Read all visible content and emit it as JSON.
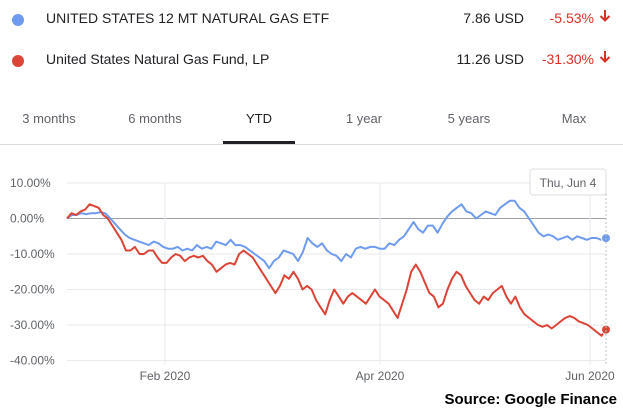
{
  "legend": [
    {
      "name": "UNITED STATES 12 MT NATURAL GAS ETF",
      "price": "7.86 USD",
      "change": "-5.53%",
      "color": "#6f9bef",
      "direction": "down"
    },
    {
      "name": "United States Natural Gas Fund, LP",
      "price": "11.26 USD",
      "change": "-31.30%",
      "color": "#db4437",
      "direction": "down"
    }
  ],
  "tabs": [
    "3 months",
    "6 months",
    "YTD",
    "1 year",
    "5 years",
    "Max"
  ],
  "active_tab": "YTD",
  "tooltip": "Thu, Jun 4",
  "source": "Source: Google Finance",
  "chart_data": {
    "type": "line",
    "y_ticks": [
      "10.00%",
      "0.00%",
      "-10.00%",
      "-20.00%",
      "-30.00%",
      "-40.00%"
    ],
    "ylim": [
      -40,
      10
    ],
    "x_ticks": [
      "Feb 2020",
      "Apr 2020",
      "Jun 2020"
    ],
    "grid": true,
    "series": [
      {
        "name": "UNITED STATES 12 MT NATURAL GAS ETF",
        "color": "#6f9bef",
        "values": [
          0,
          1,
          1,
          1.5,
          1.2,
          1.5,
          1.5,
          1.8,
          1.4,
          0,
          -1.5,
          -3,
          -4.5,
          -5.5,
          -6,
          -6.5,
          -7,
          -7.5,
          -6.5,
          -7,
          -8,
          -8.5,
          -8.5,
          -8,
          -9,
          -8.5,
          -9,
          -7.5,
          -8.5,
          -8,
          -8.5,
          -6.5,
          -7,
          -7.5,
          -6,
          -7.5,
          -7.5,
          -8,
          -9,
          -10,
          -11,
          -12,
          -14,
          -12,
          -11,
          -9,
          -9.5,
          -10,
          -12,
          -9.5,
          -5.5,
          -7,
          -8,
          -7,
          -9,
          -10,
          -10.5,
          -12,
          -10,
          -11,
          -8.5,
          -8,
          -8.5,
          -8,
          -8,
          -8.5,
          -8.5,
          -7,
          -7.5,
          -6,
          -5,
          -3,
          -1,
          -3,
          -4,
          -2,
          -2,
          -4,
          -1.5,
          0.5,
          2,
          3,
          4,
          2,
          1.5,
          0,
          1,
          2,
          1.5,
          1,
          3,
          4,
          5,
          5,
          3,
          2,
          0,
          -2,
          -4,
          -5,
          -4.5,
          -5,
          -6,
          -5.5,
          -5,
          -6,
          -5,
          -5.5,
          -6,
          -5.5,
          -5.5,
          -6,
          -5.53
        ],
        "last_value": "-5.53%"
      },
      {
        "name": "United States Natural Gas Fund, LP",
        "color": "#db4437",
        "values": [
          0,
          1.5,
          1,
          2,
          2.5,
          4,
          3.5,
          3,
          1,
          0,
          -2,
          -4,
          -6,
          -9,
          -9,
          -8,
          -10,
          -10,
          -9,
          -9,
          -11,
          -12.5,
          -12.5,
          -11,
          -10,
          -10.5,
          -12,
          -11,
          -10.5,
          -11,
          -10.5,
          -12,
          -13,
          -15,
          -14,
          -13,
          -12.5,
          -13,
          -10,
          -9,
          -10,
          -11,
          -13,
          -15,
          -17,
          -19,
          -21,
          -19,
          -16,
          -17,
          -15,
          -17,
          -20,
          -19,
          -20,
          -23,
          -25,
          -27,
          -23,
          -20,
          -22,
          -24,
          -22,
          -21,
          -22,
          -23,
          -24,
          -22,
          -20,
          -22,
          -23,
          -24,
          -26,
          -28,
          -24,
          -20,
          -15,
          -13,
          -15,
          -18,
          -21,
          -22,
          -25,
          -24,
          -20,
          -17,
          -15,
          -16,
          -19,
          -21,
          -23,
          -24,
          -22,
          -23,
          -21,
          -20,
          -19,
          -22,
          -24,
          -22,
          -25,
          -27,
          -28,
          -29,
          -30,
          -30.5,
          -30,
          -31,
          -30,
          -29,
          -28,
          -27.5,
          -28,
          -29,
          -29.5,
          -30,
          -31,
          -32,
          -33,
          -31.3
        ],
        "last_value": "-31.30%"
      }
    ]
  }
}
